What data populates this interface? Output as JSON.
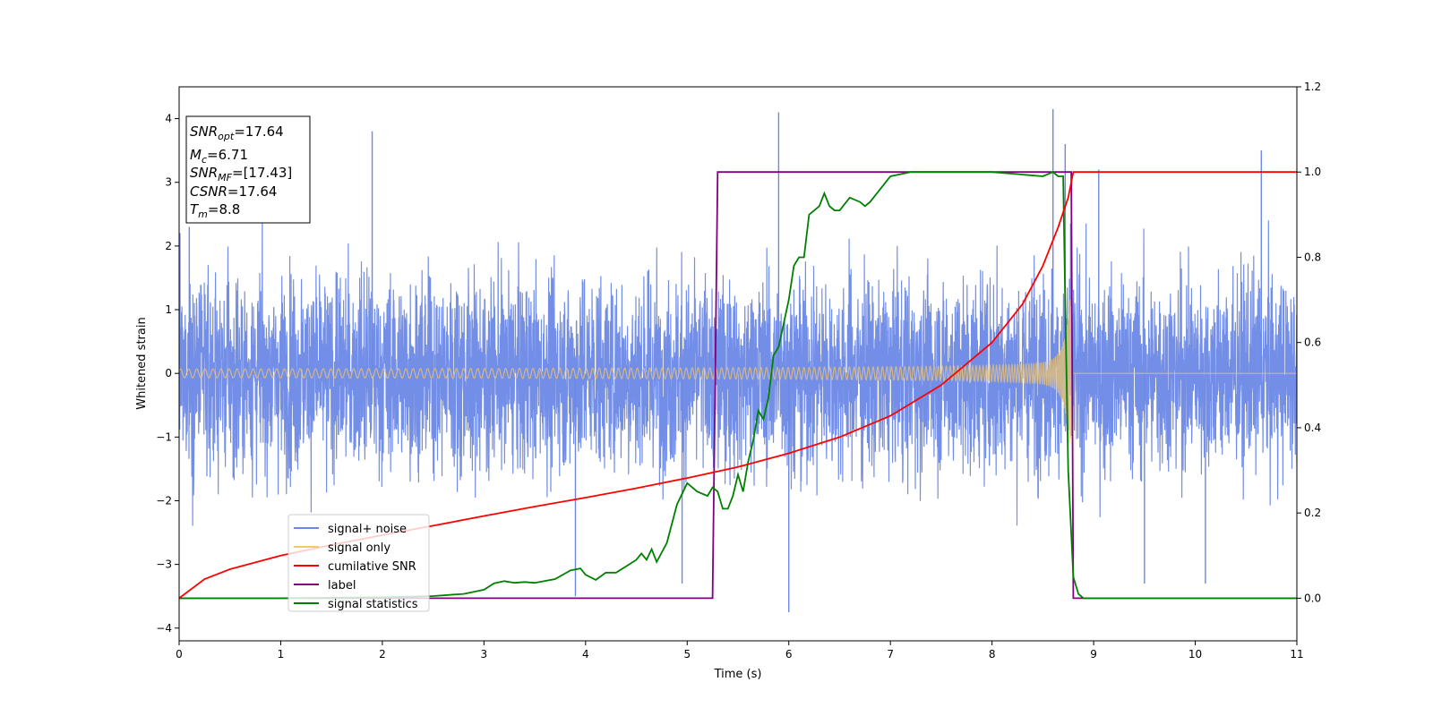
{
  "chart_data": {
    "type": "line",
    "xlabel": "Time (s)",
    "ylabel": "Whitened strain",
    "xlim": [
      0,
      11
    ],
    "ylim_left": [
      -4.2,
      4.5
    ],
    "ylim_right": [
      -0.1,
      1.2
    ],
    "xticks": [
      "0",
      "1",
      "2",
      "3",
      "4",
      "5",
      "6",
      "7",
      "8",
      "9",
      "10",
      "11"
    ],
    "yticks_left": [
      "−4",
      "−3",
      "−2",
      "−1",
      "0",
      "1",
      "2",
      "3",
      "4"
    ],
    "yticks_right": [
      "0.0",
      "0.2",
      "0.4",
      "0.6",
      "0.8",
      "1.0",
      "1.2"
    ],
    "grid": false,
    "legend_position": "lower-left",
    "series": [
      {
        "name": "signal+ noise",
        "axis": "left",
        "color": "#6b88e6",
        "description": "dense noisy time series, roughly uniform amplitude ±2.5 with peaks up to ±4.2",
        "envelope": 2.2,
        "spikes": [
          [
            0.1,
            2.3
          ],
          [
            1.9,
            3.8
          ],
          [
            3.9,
            -3.5
          ],
          [
            4.95,
            -3.3
          ],
          [
            5.9,
            4.1
          ],
          [
            6.0,
            -3.75
          ],
          [
            8.6,
            4.15
          ],
          [
            8.72,
            3.6
          ],
          [
            9.05,
            3.2
          ],
          [
            9.5,
            -3.3
          ],
          [
            10.1,
            -3.3
          ],
          [
            10.65,
            3.5
          ]
        ]
      },
      {
        "name": "signal only",
        "axis": "left",
        "color": "#f5c86a",
        "description": "chirp: oscillation with amplitude growing from ~0.07 at t=0 to ~1.2 at merger t≈8.78 s, then 0",
        "amplitude_start": 0.07,
        "amplitude_peak": 1.2,
        "merger_time": 8.78
      },
      {
        "name": "cumilative SNR",
        "axis": "right",
        "color": "#ff0000",
        "x": [
          0,
          0.25,
          0.5,
          1.0,
          1.5,
          2.0,
          2.5,
          3.0,
          3.5,
          4.0,
          4.5,
          5.0,
          5.5,
          6.0,
          6.5,
          7.0,
          7.5,
          8.0,
          8.3,
          8.5,
          8.65,
          8.75,
          8.8,
          9.0,
          10.0,
          11.0
        ],
        "y": [
          0.0,
          0.045,
          0.068,
          0.1,
          0.125,
          0.148,
          0.17,
          0.193,
          0.215,
          0.236,
          0.258,
          0.282,
          0.308,
          0.34,
          0.378,
          0.428,
          0.5,
          0.6,
          0.69,
          0.78,
          0.87,
          0.94,
          1.0,
          1.0,
          1.0,
          1.0
        ]
      },
      {
        "name": "label",
        "axis": "right",
        "color": "#800080",
        "x": [
          0,
          5.25,
          5.3,
          8.78,
          8.8,
          11.0
        ],
        "y": [
          0.0,
          0.0,
          1.0,
          1.0,
          0.0,
          0.0
        ]
      },
      {
        "name": "signal statistics",
        "axis": "right",
        "color": "#008000",
        "x": [
          0,
          1,
          2,
          2.5,
          2.8,
          3.0,
          3.1,
          3.2,
          3.3,
          3.4,
          3.5,
          3.7,
          3.85,
          3.95,
          4.0,
          4.1,
          4.2,
          4.3,
          4.4,
          4.5,
          4.55,
          4.6,
          4.65,
          4.7,
          4.8,
          4.9,
          5.0,
          5.1,
          5.2,
          5.25,
          5.3,
          5.35,
          5.4,
          5.45,
          5.5,
          5.55,
          5.6,
          5.65,
          5.7,
          5.75,
          5.8,
          5.85,
          5.9,
          6.0,
          6.05,
          6.1,
          6.15,
          6.2,
          6.25,
          6.3,
          6.35,
          6.4,
          6.45,
          6.5,
          6.6,
          6.7,
          6.75,
          6.8,
          6.9,
          7.0,
          7.1,
          7.2,
          7.3,
          7.5,
          8.0,
          8.5,
          8.6,
          8.65,
          8.7,
          8.72,
          8.75,
          8.8,
          8.85,
          8.9,
          9.5,
          10.0,
          11.0
        ],
        "y": [
          0.0,
          0.0,
          0.002,
          0.005,
          0.01,
          0.02,
          0.035,
          0.04,
          0.036,
          0.038,
          0.036,
          0.045,
          0.065,
          0.07,
          0.055,
          0.043,
          0.06,
          0.06,
          0.075,
          0.09,
          0.105,
          0.09,
          0.115,
          0.085,
          0.13,
          0.22,
          0.27,
          0.25,
          0.24,
          0.26,
          0.25,
          0.21,
          0.21,
          0.24,
          0.29,
          0.25,
          0.32,
          0.37,
          0.44,
          0.42,
          0.47,
          0.57,
          0.59,
          0.7,
          0.78,
          0.8,
          0.8,
          0.9,
          0.91,
          0.92,
          0.95,
          0.92,
          0.91,
          0.91,
          0.94,
          0.93,
          0.92,
          0.93,
          0.96,
          0.99,
          0.995,
          1.0,
          1.0,
          1.0,
          1.0,
          0.99,
          1.0,
          0.99,
          0.99,
          0.7,
          0.3,
          0.05,
          0.01,
          0.0,
          0.0,
          0.0,
          0.0
        ]
      }
    ],
    "annotations": {
      "snr_opt": {
        "sym": "SNR",
        "sub": "opt",
        "value": "=17.64"
      },
      "mc": {
        "sym": "M",
        "sub": "c",
        "value": "=6.71"
      },
      "snr_mf": {
        "sym": "SNR",
        "sub": "MF",
        "value": "=[17.43]"
      },
      "csnr": {
        "sym": "CSNR",
        "sub": "",
        "value": "=17.64"
      },
      "tm": {
        "sym": "T",
        "sub": "m",
        "value": "=8.8"
      }
    }
  }
}
